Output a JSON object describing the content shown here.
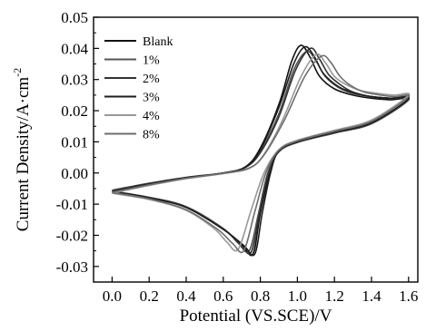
{
  "chart_data": {
    "type": "line",
    "title": "",
    "xlabel": "Potential (VS.SCE)/V",
    "ylabel": "Current Density/A·cm",
    "ylabel_superscript": "-2",
    "xlim": [
      -0.1,
      1.65
    ],
    "ylim": [
      -0.035,
      0.05
    ],
    "x_ticks": [
      0.0,
      0.2,
      0.4,
      0.6,
      0.8,
      1.0,
      1.2,
      1.4,
      1.6
    ],
    "x_tick_labels": [
      "0.0",
      "0.2",
      "0.4",
      "0.6",
      "0.8",
      "1.0",
      "1.2",
      "1.4",
      "1.6"
    ],
    "y_ticks": [
      -0.03,
      -0.02,
      -0.01,
      0.0,
      0.01,
      0.02,
      0.03,
      0.04,
      0.05
    ],
    "y_tick_labels": [
      "-0.03",
      "-0.02",
      "-0.01",
      "0.00",
      "0.01",
      "0.02",
      "0.03",
      "0.04",
      "0.05"
    ],
    "grid": false,
    "legend_position": "top-left",
    "series": [
      {
        "name": "Blank",
        "color": "#111111",
        "peak": {
          "ox_x": 1.02,
          "ox_y": 0.041,
          "red_x": 0.76,
          "red_y": -0.026
        },
        "forward": [
          [
            0.0,
            -0.006
          ],
          [
            0.2,
            -0.0035
          ],
          [
            0.4,
            -0.0015
          ],
          [
            0.6,
            0.0
          ],
          [
            0.72,
            0.002
          ],
          [
            0.8,
            0.008
          ],
          [
            0.9,
            0.022
          ],
          [
            0.97,
            0.036
          ],
          [
            1.02,
            0.041
          ],
          [
            1.07,
            0.037
          ],
          [
            1.12,
            0.031
          ],
          [
            1.2,
            0.027
          ],
          [
            1.3,
            0.025
          ],
          [
            1.4,
            0.024
          ],
          [
            1.5,
            0.0235
          ],
          [
            1.6,
            0.0235
          ]
        ],
        "reverse": [
          [
            1.6,
            0.022
          ],
          [
            1.4,
            0.016
          ],
          [
            1.2,
            0.013
          ],
          [
            1.0,
            0.01
          ],
          [
            0.9,
            0.007
          ],
          [
            0.85,
            0.0
          ],
          [
            0.8,
            -0.013
          ],
          [
            0.76,
            -0.026
          ],
          [
            0.7,
            -0.023
          ],
          [
            0.6,
            -0.018
          ],
          [
            0.4,
            -0.011
          ],
          [
            0.2,
            -0.008
          ],
          [
            0.0,
            -0.006
          ]
        ]
      },
      {
        "name": "1%",
        "color": "#555555",
        "peak": {
          "ox_x": 1.05,
          "ox_y": 0.039,
          "red_x": 0.74,
          "red_y": -0.025
        },
        "forward": [
          [
            0.0,
            -0.0055
          ],
          [
            0.2,
            -0.0033
          ],
          [
            0.4,
            -0.0014
          ],
          [
            0.6,
            0.0
          ],
          [
            0.72,
            0.0018
          ],
          [
            0.8,
            0.007
          ],
          [
            0.9,
            0.019
          ],
          [
            0.98,
            0.033
          ],
          [
            1.05,
            0.039
          ],
          [
            1.1,
            0.036
          ],
          [
            1.15,
            0.031
          ],
          [
            1.22,
            0.0275
          ],
          [
            1.3,
            0.0255
          ],
          [
            1.4,
            0.0245
          ],
          [
            1.5,
            0.024
          ],
          [
            1.6,
            0.0235
          ]
        ],
        "reverse": [
          [
            1.6,
            0.0215
          ],
          [
            1.4,
            0.0158
          ],
          [
            1.2,
            0.0128
          ],
          [
            1.0,
            0.0098
          ],
          [
            0.9,
            0.0068
          ],
          [
            0.84,
            0.0
          ],
          [
            0.79,
            -0.013
          ],
          [
            0.74,
            -0.025
          ],
          [
            0.68,
            -0.0225
          ],
          [
            0.6,
            -0.0178
          ],
          [
            0.4,
            -0.0108
          ],
          [
            0.2,
            -0.0078
          ],
          [
            0.0,
            -0.0058
          ]
        ]
      },
      {
        "name": "2%",
        "color": "#333333",
        "peak": {
          "ox_x": 1.07,
          "ox_y": 0.04,
          "red_x": 0.75,
          "red_y": -0.0255
        },
        "forward": [
          [
            0.0,
            -0.0058
          ],
          [
            0.2,
            -0.0034
          ],
          [
            0.4,
            -0.0015
          ],
          [
            0.6,
            0.0
          ],
          [
            0.72,
            0.0018
          ],
          [
            0.8,
            0.0065
          ],
          [
            0.9,
            0.018
          ],
          [
            0.99,
            0.033
          ],
          [
            1.07,
            0.04
          ],
          [
            1.12,
            0.0365
          ],
          [
            1.17,
            0.0315
          ],
          [
            1.24,
            0.028
          ],
          [
            1.3,
            0.026
          ],
          [
            1.4,
            0.0245
          ],
          [
            1.5,
            0.024
          ],
          [
            1.6,
            0.024
          ]
        ],
        "reverse": [
          [
            1.6,
            0.0218
          ],
          [
            1.4,
            0.016
          ],
          [
            1.2,
            0.013
          ],
          [
            1.0,
            0.0099
          ],
          [
            0.9,
            0.0069
          ],
          [
            0.845,
            0.0
          ],
          [
            0.795,
            -0.013
          ],
          [
            0.75,
            -0.0255
          ],
          [
            0.69,
            -0.0228
          ],
          [
            0.6,
            -0.018
          ],
          [
            0.4,
            -0.011
          ],
          [
            0.2,
            -0.0079
          ],
          [
            0.0,
            -0.0059
          ]
        ]
      },
      {
        "name": "3%",
        "color": "#1e1e1e",
        "peak": {
          "ox_x": 1.04,
          "ox_y": 0.0405,
          "red_x": 0.77,
          "red_y": -0.026
        },
        "forward": [
          [
            0.0,
            -0.006
          ],
          [
            0.2,
            -0.0035
          ],
          [
            0.4,
            -0.0015
          ],
          [
            0.6,
            0.0
          ],
          [
            0.72,
            0.0019
          ],
          [
            0.8,
            0.0075
          ],
          [
            0.9,
            0.021
          ],
          [
            0.98,
            0.035
          ],
          [
            1.04,
            0.0405
          ],
          [
            1.09,
            0.0375
          ],
          [
            1.14,
            0.032
          ],
          [
            1.22,
            0.0278
          ],
          [
            1.3,
            0.0258
          ],
          [
            1.4,
            0.0245
          ],
          [
            1.5,
            0.024
          ],
          [
            1.6,
            0.0238
          ]
        ],
        "reverse": [
          [
            1.6,
            0.0222
          ],
          [
            1.4,
            0.0162
          ],
          [
            1.2,
            0.0131
          ],
          [
            1.0,
            0.0101
          ],
          [
            0.9,
            0.0071
          ],
          [
            0.855,
            0.0
          ],
          [
            0.81,
            -0.013
          ],
          [
            0.77,
            -0.026
          ],
          [
            0.71,
            -0.0232
          ],
          [
            0.6,
            -0.0181
          ],
          [
            0.4,
            -0.0111
          ],
          [
            0.2,
            -0.008
          ],
          [
            0.0,
            -0.006
          ]
        ]
      },
      {
        "name": "4%",
        "color": "#999999",
        "peak": {
          "ox_x": 1.1,
          "ox_y": 0.038,
          "red_x": 0.68,
          "red_y": -0.0245
        },
        "forward": [
          [
            0.0,
            -0.0065
          ],
          [
            0.2,
            -0.004
          ],
          [
            0.4,
            -0.0018
          ],
          [
            0.6,
            -0.0002
          ],
          [
            0.74,
            0.0015
          ],
          [
            0.82,
            0.006
          ],
          [
            0.92,
            0.017
          ],
          [
            1.02,
            0.031
          ],
          [
            1.1,
            0.038
          ],
          [
            1.15,
            0.0355
          ],
          [
            1.2,
            0.031
          ],
          [
            1.26,
            0.0285
          ],
          [
            1.34,
            0.0265
          ],
          [
            1.44,
            0.0255
          ],
          [
            1.52,
            0.025
          ],
          [
            1.6,
            0.025
          ]
        ],
        "reverse": [
          [
            1.6,
            0.0235
          ],
          [
            1.4,
            0.017
          ],
          [
            1.2,
            0.0137
          ],
          [
            1.0,
            0.0105
          ],
          [
            0.9,
            0.0075
          ],
          [
            0.82,
            0.0
          ],
          [
            0.75,
            -0.012
          ],
          [
            0.68,
            -0.0245
          ],
          [
            0.62,
            -0.0222
          ],
          [
            0.55,
            -0.0178
          ],
          [
            0.4,
            -0.012
          ],
          [
            0.2,
            -0.0085
          ],
          [
            0.0,
            -0.0065
          ]
        ]
      },
      {
        "name": "8%",
        "color": "#6e6e6e",
        "peak": {
          "ox_x": 1.13,
          "ox_y": 0.0375,
          "red_x": 0.71,
          "red_y": -0.025
        },
        "forward": [
          [
            0.0,
            -0.0062
          ],
          [
            0.2,
            -0.0038
          ],
          [
            0.4,
            -0.0017
          ],
          [
            0.6,
            -0.0001
          ],
          [
            0.74,
            0.0016
          ],
          [
            0.82,
            0.0058
          ],
          [
            0.93,
            0.017
          ],
          [
            1.04,
            0.031
          ],
          [
            1.13,
            0.0375
          ],
          [
            1.18,
            0.0355
          ],
          [
            1.23,
            0.031
          ],
          [
            1.29,
            0.028
          ],
          [
            1.36,
            0.026
          ],
          [
            1.45,
            0.025
          ],
          [
            1.52,
            0.0245
          ],
          [
            1.6,
            0.0245
          ]
        ],
        "reverse": [
          [
            1.6,
            0.0228
          ],
          [
            1.4,
            0.0166
          ],
          [
            1.2,
            0.0134
          ],
          [
            1.0,
            0.0103
          ],
          [
            0.9,
            0.0073
          ],
          [
            0.83,
            0.0
          ],
          [
            0.77,
            -0.0125
          ],
          [
            0.71,
            -0.025
          ],
          [
            0.65,
            -0.0226
          ],
          [
            0.57,
            -0.0181
          ],
          [
            0.4,
            -0.0118
          ],
          [
            0.2,
            -0.0083
          ],
          [
            0.0,
            -0.0063
          ]
        ]
      }
    ]
  }
}
